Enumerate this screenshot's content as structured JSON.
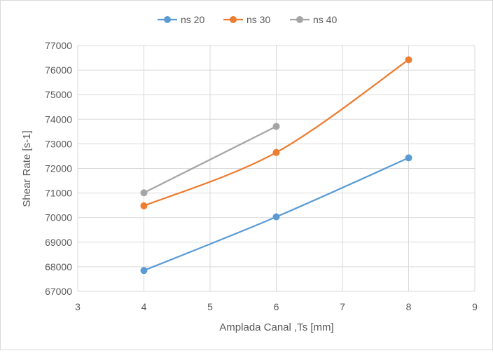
{
  "chart_data": {
    "type": "line",
    "title": "",
    "xlabel": "Amplada Canal ,Ts [mm]",
    "ylabel": "Shear Rate [s-1]",
    "xlim": [
      3,
      9
    ],
    "ylim": [
      67000,
      77000
    ],
    "x_ticks": [
      "3",
      "4",
      "5",
      "6",
      "7",
      "8",
      "9"
    ],
    "y_ticks": [
      "67000",
      "68000",
      "69000",
      "70000",
      "71000",
      "72000",
      "73000",
      "74000",
      "75000",
      "76000",
      "77000"
    ],
    "grid": true,
    "legend_position": "top",
    "smoothed": true,
    "series": [
      {
        "name": "ns 20",
        "color": "#5b9bd5",
        "x": [
          4,
          6,
          8
        ],
        "y": [
          67850,
          70030,
          72430
        ]
      },
      {
        "name": "ns 30",
        "color": "#ed7d31",
        "x": [
          4,
          6,
          8
        ],
        "y": [
          70480,
          72650,
          76420
        ]
      },
      {
        "name": "ns 40",
        "color": "#a5a5a5",
        "x": [
          4,
          6
        ],
        "y": [
          71010,
          73710
        ]
      }
    ]
  }
}
